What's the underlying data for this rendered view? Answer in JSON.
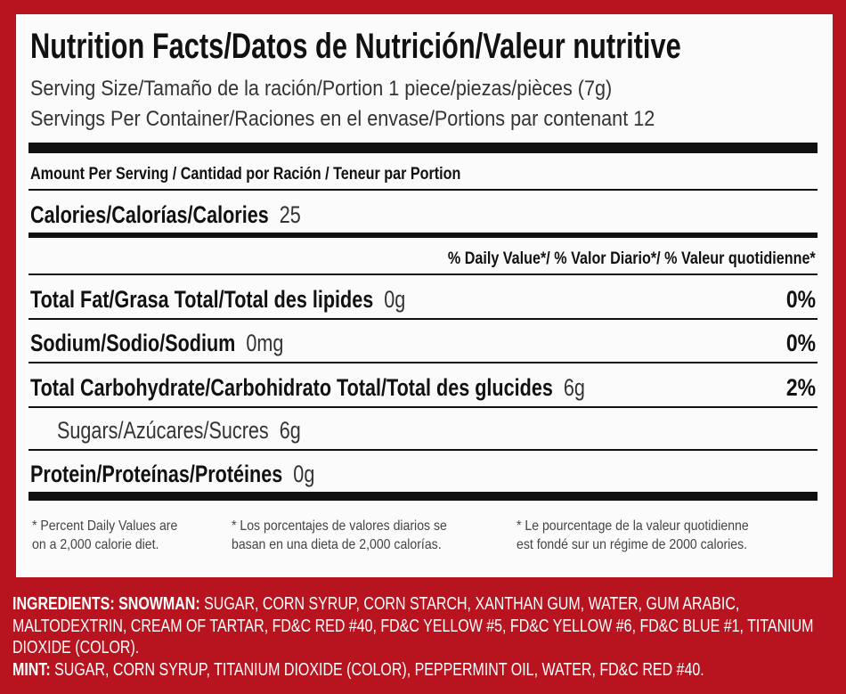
{
  "title": "Nutrition Facts/Datos de Nutrición/Valeur nutritive",
  "serving_size": "Serving Size/Tamaño de la ración/Portion 1 piece/piezas/pièces (7g)",
  "servings_per_container": "Servings Per Container/Raciones en el envase/Portions par contenant 12",
  "amount_per_serving": "Amount Per Serving / Cantidad por Ración / Teneur par Portion",
  "calories": {
    "label": "Calories/Calorías/Calories",
    "value": "25"
  },
  "daily_value_header": "% Daily Value*/ % Valor Diario*/ % Valeur quotidienne*",
  "nutrients": [
    {
      "name": "Total Fat/Grasa Total/Total des lipides",
      "amount": "0g",
      "percent": "0%"
    },
    {
      "name": "Sodium/Sodio/Sodium",
      "amount": "0mg",
      "percent": "0%"
    },
    {
      "name": "Total Carbohydrate/Carbohidrato Total/Total des glucides",
      "amount": "6g",
      "percent": "2%"
    },
    {
      "name": "Sugars/Azúcares/Sucres",
      "amount": "6g"
    },
    {
      "name": "Protein/Proteínas/Protéines",
      "amount": "0g"
    }
  ],
  "footnotes": [
    [
      "* Percent Daily Values are",
      "on a 2,000 calorie diet."
    ],
    [
      "* Los porcentajes de valores diarios se",
      "basan en una dieta de 2,000 calorías."
    ],
    [
      "* Le pourcentage de la valeur quotidienne",
      "est fondé sur un régime de 2000 calories."
    ]
  ],
  "ingredients": [
    {
      "label": "INGREDIENTS: SNOWMAN:",
      "text": "SUGAR, CORN SYRUP, CORN STARCH, XANTHAN GUM, WATER, GUM ARABIC, MALTODEXTRIN, CREAM OF TARTAR, FD&C RED #40, FD&C YELLOW #5, FD&C YELLOW #6, FD&C BLUE #1, TITANIUM DIOXIDE (COLOR)."
    },
    {
      "label": "MINT:",
      "text": "SUGAR, CORN SYRUP, TITANIUM DIOXIDE (COLOR), PEPPERMINT OIL, WATER, FD&C RED #40."
    }
  ]
}
